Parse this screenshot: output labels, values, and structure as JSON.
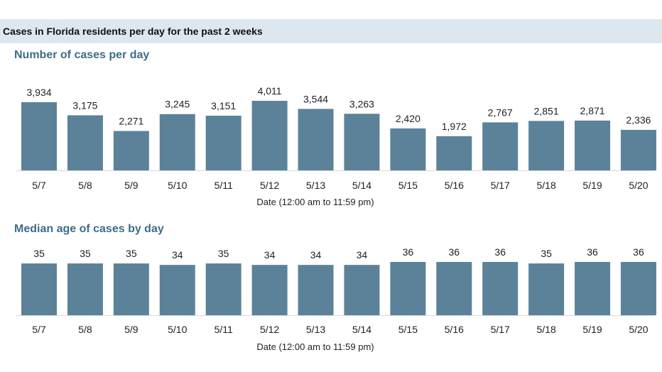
{
  "header": {
    "title": "Cases in Florida residents per day for the past 2 weeks"
  },
  "chart_data": [
    {
      "type": "bar",
      "title": "Number of cases per day",
      "xlabel": "Date (12:00 am to 11:59 pm)",
      "ylabel": "",
      "categories": [
        "5/7",
        "5/8",
        "5/9",
        "5/10",
        "5/11",
        "5/12",
        "5/13",
        "5/14",
        "5/15",
        "5/16",
        "5/17",
        "5/18",
        "5/19",
        "5/20"
      ],
      "values": [
        3934,
        3175,
        2271,
        3245,
        3151,
        4011,
        3544,
        3263,
        2420,
        1972,
        2767,
        2851,
        2871,
        2336
      ],
      "value_labels": [
        "3,934",
        "3,175",
        "2,271",
        "3,245",
        "3,151",
        "4,011",
        "3,544",
        "3,263",
        "2,420",
        "1,972",
        "2,767",
        "2,851",
        "2,871",
        "2,336"
      ],
      "ylim": [
        0,
        4011
      ],
      "grid": false,
      "bar_color": "#5b8299"
    },
    {
      "type": "bar",
      "title": "Median age of cases by day",
      "xlabel": "Date (12:00 am to 11:59 pm)",
      "ylabel": "",
      "categories": [
        "5/7",
        "5/8",
        "5/9",
        "5/10",
        "5/11",
        "5/12",
        "5/13",
        "5/14",
        "5/15",
        "5/16",
        "5/17",
        "5/18",
        "5/19",
        "5/20"
      ],
      "values": [
        35,
        35,
        35,
        34,
        35,
        34,
        34,
        34,
        36,
        36,
        36,
        35,
        36,
        36
      ],
      "value_labels": [
        "35",
        "35",
        "35",
        "34",
        "35",
        "34",
        "34",
        "34",
        "36",
        "36",
        "36",
        "35",
        "36",
        "36"
      ],
      "ylim": [
        0,
        36
      ],
      "grid": false,
      "bar_color": "#5b8299"
    }
  ]
}
